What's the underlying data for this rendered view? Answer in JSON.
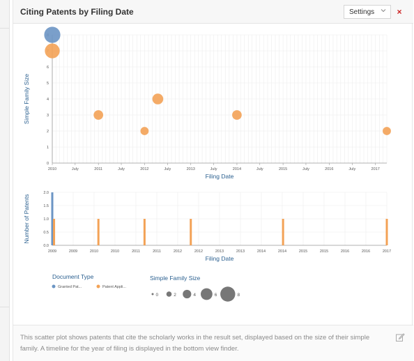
{
  "panel": {
    "title": "Citing Patents by Filing Date",
    "settings_label": "Settings",
    "close_label": "×",
    "description": "This scatter plot shows patents that cite the scholarly works in the result set, displayed based on the size of their simple family. A timeline for the year of filing is displayed in the bottom view finder."
  },
  "colors": {
    "granted": "#6b95c4",
    "application": "#f3a256",
    "axis_title": "#2a5f8f",
    "close": "#cc2222"
  },
  "icons": {
    "settings_chevron": "chevron-down-icon",
    "close": "close-icon",
    "edit": "edit-icon"
  },
  "chart_data": [
    {
      "type": "scatter",
      "xlabel": "Filing Date",
      "ylabel": "Simple Family Size",
      "x_range": [
        "2010-01-01",
        "2017-04-01"
      ],
      "ylim": [
        0,
        8
      ],
      "y_ticks": [
        0,
        1,
        2,
        3,
        4,
        5,
        6,
        7,
        8
      ],
      "x_tick_labels": [
        "2010",
        "July",
        "2011",
        "July",
        "2012",
        "July",
        "2013",
        "July",
        "2014",
        "July",
        "2015",
        "July",
        "2016",
        "July",
        "2017"
      ],
      "grid": true,
      "points": [
        {
          "date": "2010-01-01",
          "y": 8,
          "doc_type": "Granted Patent"
        },
        {
          "date": "2010-01-01",
          "y": 7,
          "doc_type": "Patent Application"
        },
        {
          "date": "2011-01-01",
          "y": 3,
          "doc_type": "Patent Application"
        },
        {
          "date": "2012-01-01",
          "y": 2,
          "doc_type": "Patent Application"
        },
        {
          "date": "2012-04-15",
          "y": 4,
          "doc_type": "Patent Application"
        },
        {
          "date": "2014-01-01",
          "y": 3,
          "doc_type": "Patent Application"
        },
        {
          "date": "2017-04-01",
          "y": 2,
          "doc_type": "Patent Application"
        }
      ]
    },
    {
      "type": "bar",
      "xlabel": "Filing Date",
      "ylabel": "Number of Patents",
      "x_range": [
        "2010-01-01",
        "2017-04-01"
      ],
      "ylim": [
        0,
        2
      ],
      "y_tick_labels": [
        "0.0",
        "0.5",
        "1.0",
        "1.5",
        "2.0"
      ],
      "x_tick_labels": [
        "2009",
        "2009",
        "2010",
        "2010",
        "2011",
        "2011",
        "2012",
        "2012",
        "2013",
        "2013",
        "2014",
        "2014",
        "2015",
        "2015",
        "2016",
        "2016",
        "2017"
      ],
      "bars": [
        {
          "date": "2010-01-01",
          "value": 2,
          "doc_type": "Granted Patent"
        },
        {
          "date": "2010-01-15",
          "value": 1,
          "doc_type": "Patent Application"
        },
        {
          "date": "2011-01-01",
          "value": 1,
          "doc_type": "Patent Application"
        },
        {
          "date": "2012-01-01",
          "value": 1,
          "doc_type": "Patent Application"
        },
        {
          "date": "2013-01-01",
          "value": 1,
          "doc_type": "Patent Application"
        },
        {
          "date": "2015-01-01",
          "value": 1,
          "doc_type": "Patent Application"
        },
        {
          "date": "2017-04-01",
          "value": 1,
          "doc_type": "Patent Application"
        }
      ]
    }
  ],
  "legend": {
    "doc_type_title": "Document Type",
    "doc_types": [
      {
        "label": "Granted Pat...",
        "color": "#6b95c4"
      },
      {
        "label": "Patent Appli...",
        "color": "#f3a256"
      }
    ],
    "size_title": "Simple Family Size",
    "sizes": [
      0,
      2,
      4,
      6,
      8
    ]
  }
}
